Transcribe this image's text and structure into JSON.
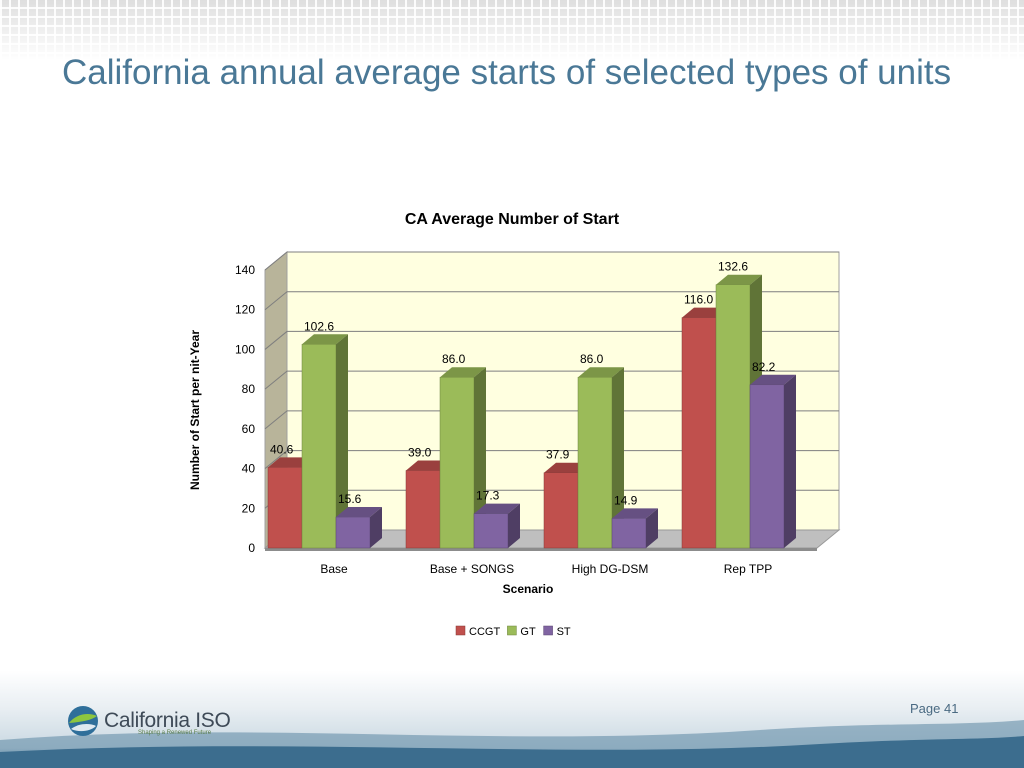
{
  "slide": {
    "title": "California annual average starts of selected types of units",
    "page_label": "Page 41"
  },
  "footer": {
    "logo_text": "California ISO",
    "logo_tagline": "Shaping a Renewed Future"
  },
  "colors": {
    "title": "#4a7896",
    "plot_background": "#ffffe0",
    "ccgt": "#c0504d",
    "gt": "#9bbb59",
    "st": "#8064a2"
  },
  "chart_data": {
    "type": "bar",
    "title": "CA Average Number of Start",
    "xlabel": "Scenario",
    "ylabel": "Number of Start per nit-Year",
    "categories": [
      "Base",
      "Base + SONGS",
      "High DG-DSM",
      "Rep TPP"
    ],
    "series": [
      {
        "name": "CCGT",
        "values": [
          40.6,
          39.0,
          37.9,
          116.0
        ],
        "labels": [
          "40.6",
          "39.0",
          "37.9",
          "116.0"
        ]
      },
      {
        "name": "GT",
        "values": [
          102.6,
          86.0,
          86.0,
          132.6
        ],
        "labels": [
          "102.6",
          "86.0",
          "86.0",
          "132.6"
        ]
      },
      {
        "name": "ST",
        "values": [
          15.6,
          17.3,
          14.9,
          82.2
        ],
        "labels": [
          "15.6",
          "17.3",
          "14.9",
          "82.2"
        ]
      }
    ],
    "yticks": [
      "0",
      "20",
      "40",
      "60",
      "80",
      "100",
      "120",
      "140"
    ],
    "ylim": [
      0,
      140
    ],
    "grid": true,
    "legend": "bottom",
    "three_d": true
  }
}
